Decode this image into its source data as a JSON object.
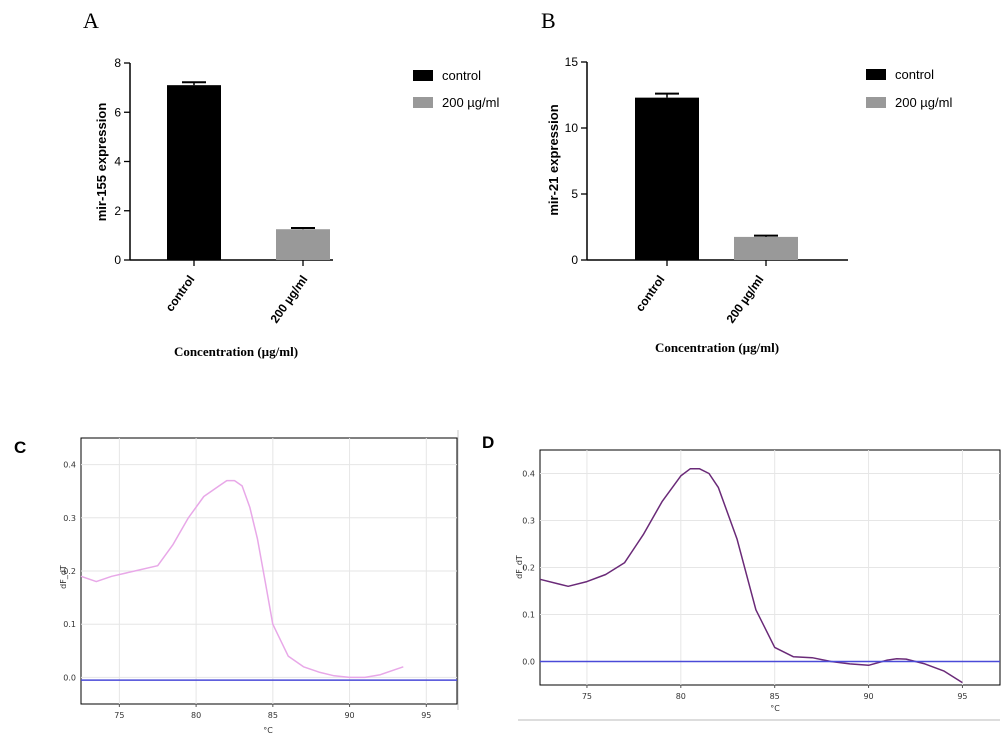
{
  "chart_data": [
    {
      "panel": "A",
      "type": "bar",
      "categories": [
        "control",
        "200 µg/ml"
      ],
      "values": [
        7.1,
        1.25
      ],
      "errors": [
        0.12,
        0.05
      ],
      "colors": [
        "#000000",
        "#999999"
      ],
      "ylabel": "mir-155 expression",
      "xlabel": "Concentration (µg/ml)",
      "ylim": [
        0,
        8
      ],
      "yticks": [
        "0",
        "2",
        "4",
        "6",
        "8"
      ],
      "legend": {
        "position": "right",
        "entries": [
          "control",
          "200 µg/ml"
        ]
      }
    },
    {
      "panel": "B",
      "type": "bar",
      "categories": [
        "control",
        "200 µg/ml"
      ],
      "values": [
        12.3,
        1.75
      ],
      "errors": [
        0.3,
        0.1
      ],
      "colors": [
        "#000000",
        "#999999"
      ],
      "ylabel": "mir-21 expression",
      "xlabel": "Concentration (µg/ml)",
      "ylim": [
        0,
        15
      ],
      "yticks": [
        "0",
        "5",
        "10",
        "15"
      ],
      "legend": {
        "position": "right",
        "entries": [
          "control",
          "200 µg/ml"
        ]
      }
    },
    {
      "panel": "C",
      "type": "line",
      "xlabel": "°C",
      "ylabel": "dF_dT",
      "xlim": [
        72.5,
        97
      ],
      "ylim": [
        -0.05,
        0.45
      ],
      "xticks": [
        "75",
        "80",
        "85",
        "90",
        "95"
      ],
      "yticks": [
        "0.0",
        "0.1",
        "0.2",
        "0.3",
        "0.4"
      ],
      "grid": true,
      "series": [
        {
          "color": "#e8a8e8",
          "x": [
            72.5,
            73.5,
            74.5,
            76,
            77.5,
            78.5,
            79.5,
            80.5,
            81.5,
            82,
            82.5,
            83,
            83.5,
            84,
            84.5,
            85,
            86,
            87,
            88,
            89,
            90,
            91,
            92,
            93,
            93.5
          ],
          "y": [
            0.19,
            0.18,
            0.19,
            0.2,
            0.21,
            0.25,
            0.3,
            0.34,
            0.36,
            0.37,
            0.37,
            0.36,
            0.32,
            0.26,
            0.18,
            0.1,
            0.04,
            0.02,
            0.01,
            0.003,
            0.0,
            0.0,
            0.005,
            0.015,
            0.02
          ]
        },
        {
          "color": "#4a4ad8",
          "x": [
            72.5,
            97
          ],
          "y": [
            -0.005,
            -0.005
          ]
        }
      ]
    },
    {
      "panel": "D",
      "type": "line",
      "xlabel": "°C",
      "ylabel": "dF_dT",
      "xlim": [
        72.5,
        97
      ],
      "ylim": [
        -0.05,
        0.45
      ],
      "xticks": [
        "75",
        "80",
        "85",
        "90",
        "95"
      ],
      "yticks": [
        "0.0",
        "0.1",
        "0.2",
        "0.3",
        "0.4"
      ],
      "grid": true,
      "series": [
        {
          "color": "#6a2a78",
          "x": [
            72.5,
            73.5,
            74,
            75,
            76,
            77,
            78,
            79,
            80,
            80.5,
            81,
            81.5,
            82,
            83,
            84,
            85,
            86,
            87,
            88,
            89,
            90,
            91,
            91.5,
            92,
            93,
            94,
            95
          ],
          "y": [
            0.175,
            0.165,
            0.16,
            0.17,
            0.185,
            0.21,
            0.27,
            0.34,
            0.395,
            0.41,
            0.41,
            0.4,
            0.37,
            0.26,
            0.11,
            0.03,
            0.01,
            0.008,
            0.0,
            -0.005,
            -0.008,
            0.003,
            0.006,
            0.005,
            -0.005,
            -0.02,
            -0.045
          ]
        },
        {
          "color": "#4a4ad8",
          "x": [
            72.5,
            97
          ],
          "y": [
            0.0,
            0.0
          ]
        }
      ]
    }
  ]
}
